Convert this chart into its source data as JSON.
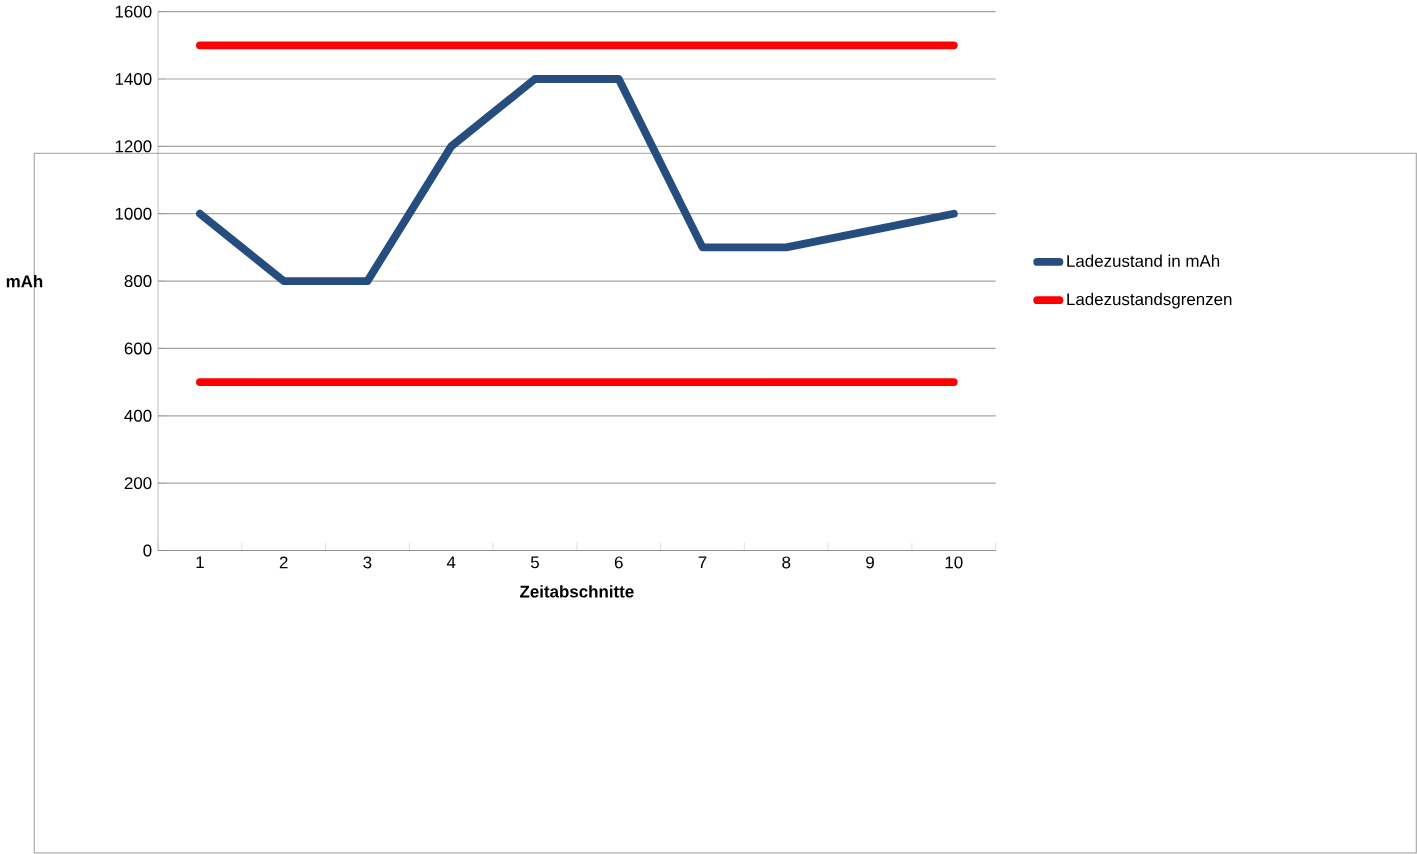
{
  "chart_data": {
    "type": "line",
    "xlabel": "Zeitabschnitte",
    "ylabel": "mAh",
    "categories": [
      "1",
      "2",
      "3",
      "4",
      "5",
      "6",
      "7",
      "8",
      "9",
      "10"
    ],
    "series": [
      {
        "name": "Ladezustand in mAh",
        "color": "#254e7f",
        "values": [
          1000,
          800,
          800,
          1200,
          1400,
          1400,
          900,
          900,
          950,
          1000
        ]
      },
      {
        "name": "Ladezustandsgrenzen",
        "color": "#ff0000",
        "values": [
          1500,
          1500,
          1500,
          1500,
          1500,
          1500,
          1500,
          1500,
          1500,
          1500
        ]
      },
      {
        "color": "#ff0000",
        "values": [
          500,
          500,
          500,
          500,
          500,
          500,
          500,
          500,
          500,
          500
        ]
      }
    ],
    "ylim": [
      0,
      1600
    ],
    "yticks": [
      0,
      200,
      400,
      600,
      800,
      1000,
      1200,
      1400,
      1600
    ],
    "grid": "y",
    "legend": "right",
    "marker": "none",
    "line_style": "solid"
  }
}
